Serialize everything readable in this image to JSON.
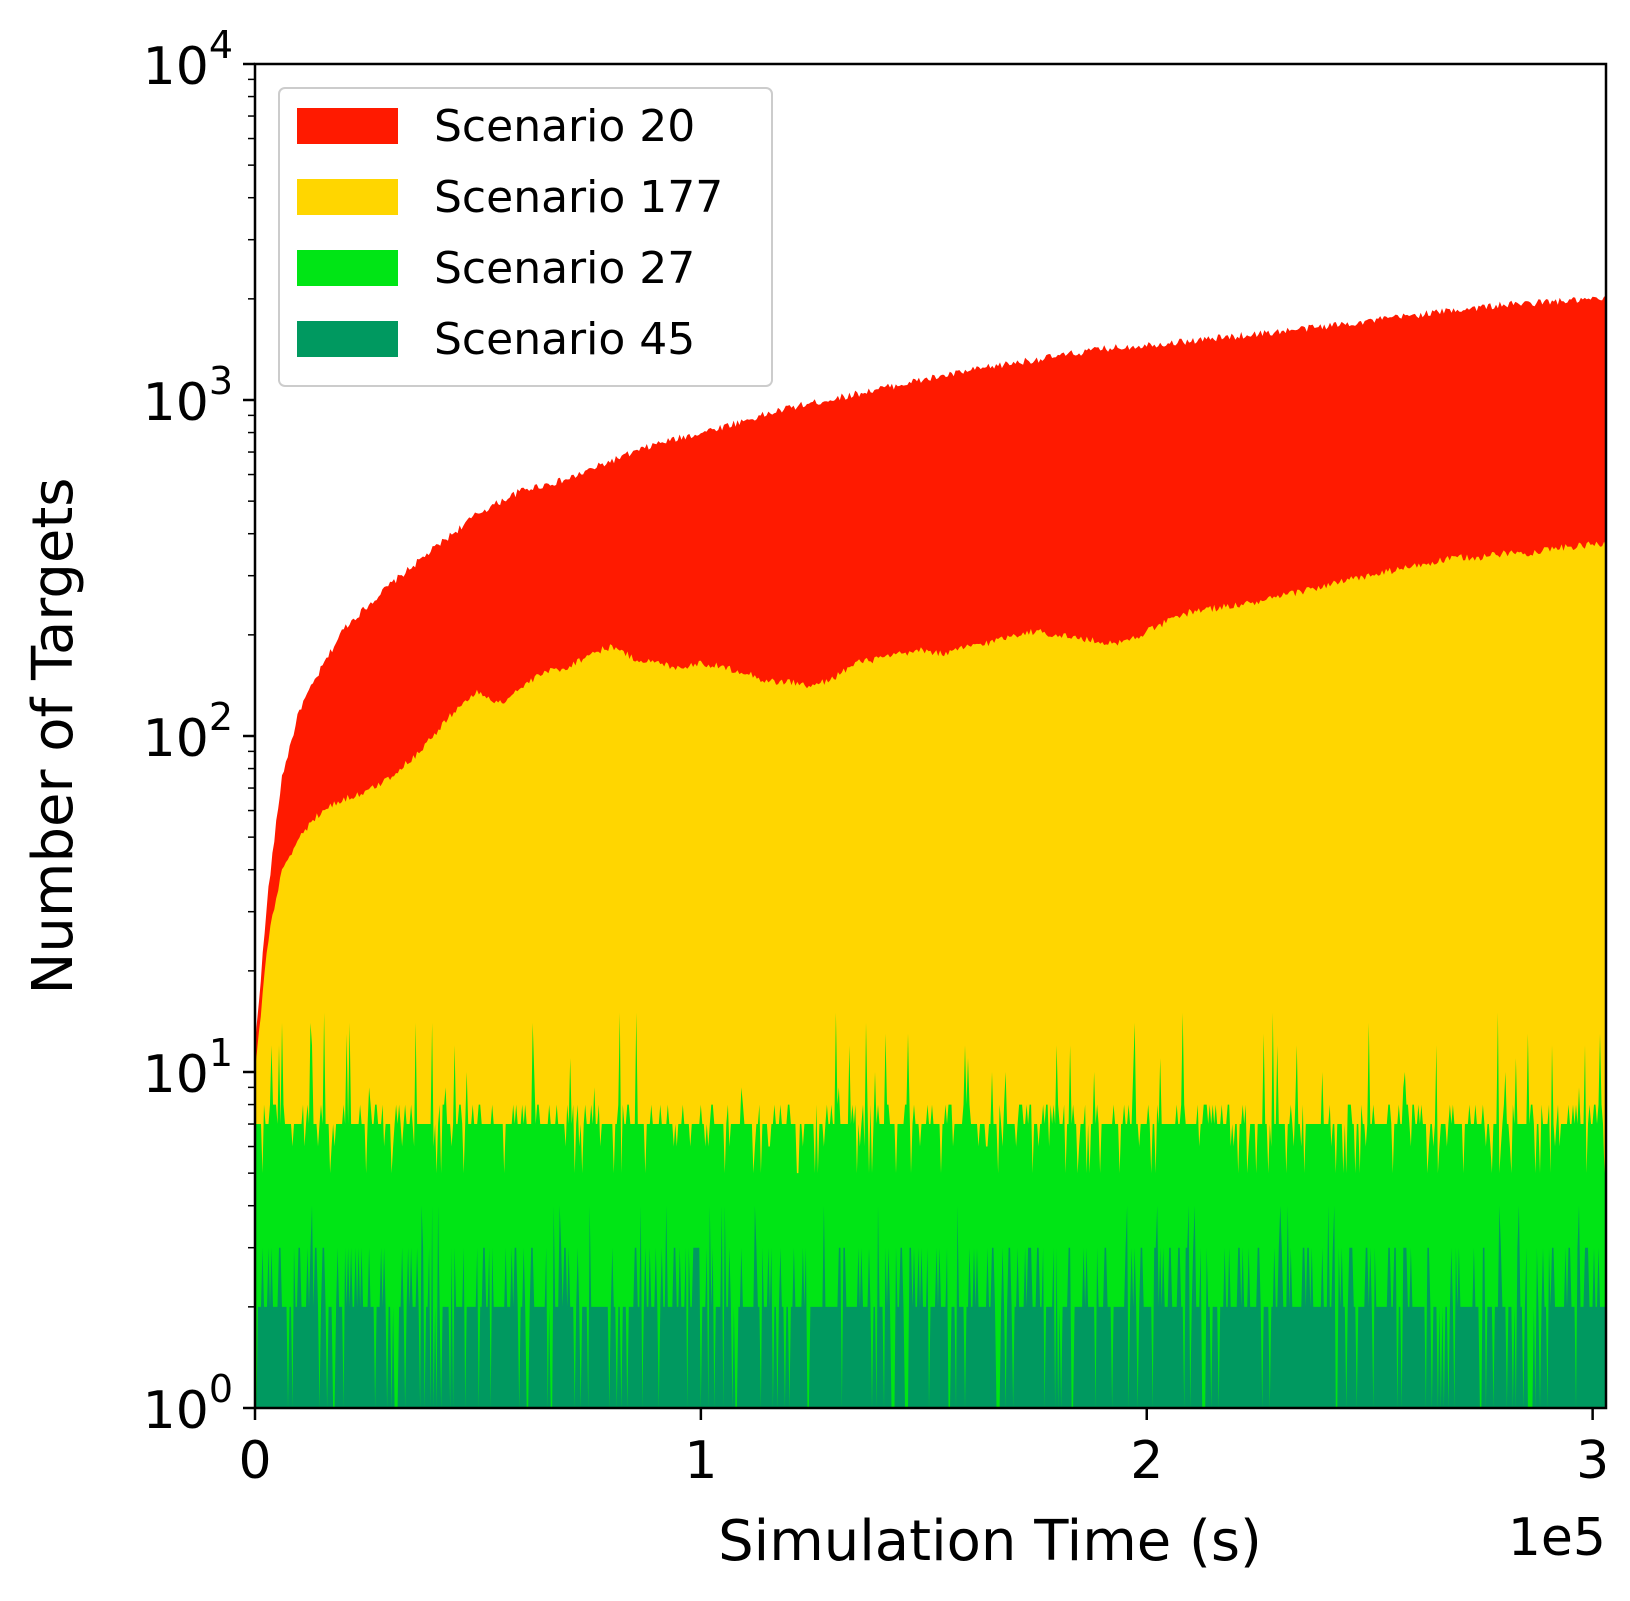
{
  "chart_data": {
    "type": "area",
    "title": "",
    "xlabel": "Simulation Time (s)",
    "ylabel": "Number of Targets",
    "x_offset_label": "1e5",
    "x_scale": 100000,
    "xlim": [
      0,
      3.03
    ],
    "ylim": [
      1,
      10000
    ],
    "yscale": "log",
    "x_ticks": [
      {
        "value": 0,
        "label": "0"
      },
      {
        "value": 1,
        "label": "1"
      },
      {
        "value": 2,
        "label": "2"
      },
      {
        "value": 3,
        "label": "3"
      }
    ],
    "y_ticks": [
      {
        "value": 1,
        "base": "10",
        "exp": "0"
      },
      {
        "value": 10,
        "base": "10",
        "exp": "1"
      },
      {
        "value": 100,
        "base": "10",
        "exp": "2"
      },
      {
        "value": 1000,
        "base": "10",
        "exp": "3"
      },
      {
        "value": 10000,
        "base": "10",
        "exp": "4"
      }
    ],
    "legend_position": "upper-left",
    "series": [
      {
        "name": "Scenario 20",
        "color": "#ff1a00",
        "x": [
          0,
          0.03,
          0.06,
          0.1,
          0.15,
          0.2,
          0.3,
          0.4,
          0.5,
          0.6,
          0.7,
          0.8,
          0.9,
          1.0,
          1.1,
          1.2,
          1.3,
          1.4,
          1.5,
          1.6,
          1.7,
          1.8,
          1.9,
          2.0,
          2.1,
          2.2,
          2.3,
          2.4,
          2.5,
          2.6,
          2.7,
          2.8,
          2.9,
          3.03
        ],
        "values": [
          12,
          35,
          75,
          120,
          160,
          210,
          280,
          360,
          460,
          540,
          580,
          660,
          740,
          800,
          870,
          950,
          1010,
          1080,
          1150,
          1220,
          1290,
          1350,
          1420,
          1460,
          1500,
          1550,
          1600,
          1660,
          1720,
          1790,
          1860,
          1920,
          1960,
          2000
        ]
      },
      {
        "name": "Scenario 177",
        "color": "#ffd600",
        "x": [
          0,
          0.03,
          0.06,
          0.1,
          0.15,
          0.2,
          0.25,
          0.3,
          0.35,
          0.4,
          0.45,
          0.5,
          0.55,
          0.6,
          0.65,
          0.7,
          0.75,
          0.8,
          0.85,
          0.9,
          0.95,
          1.0,
          1.05,
          1.1,
          1.15,
          1.2,
          1.25,
          1.3,
          1.35,
          1.4,
          1.45,
          1.5,
          1.55,
          1.6,
          1.65,
          1.7,
          1.75,
          1.8,
          1.85,
          1.9,
          1.95,
          2.0,
          2.05,
          2.1,
          2.15,
          2.2,
          2.25,
          2.3,
          2.35,
          2.4,
          2.45,
          2.5,
          2.55,
          2.6,
          2.65,
          2.7,
          2.75,
          2.8,
          2.85,
          2.9,
          2.95,
          3.03
        ],
        "values": [
          10,
          25,
          40,
          50,
          60,
          65,
          68,
          75,
          85,
          100,
          120,
          135,
          125,
          140,
          155,
          160,
          175,
          185,
          170,
          165,
          160,
          165,
          160,
          155,
          145,
          145,
          140,
          150,
          165,
          170,
          175,
          180,
          175,
          185,
          190,
          200,
          205,
          200,
          195,
          190,
          190,
          205,
          220,
          235,
          240,
          245,
          250,
          260,
          270,
          280,
          290,
          300,
          310,
          320,
          330,
          340,
          340,
          350,
          350,
          360,
          365,
          375
        ]
      },
      {
        "name": "Scenario 27",
        "color": "#00e515",
        "x": [
          0,
          3.03
        ],
        "values": [
          7,
          7
        ],
        "band_min": 5,
        "spike_max": 15
      },
      {
        "name": "Scenario 45",
        "color": "#009960",
        "x": [
          0,
          3.03
        ],
        "values": [
          2,
          2
        ],
        "band_min": 1,
        "spike_max": 4
      }
    ]
  }
}
